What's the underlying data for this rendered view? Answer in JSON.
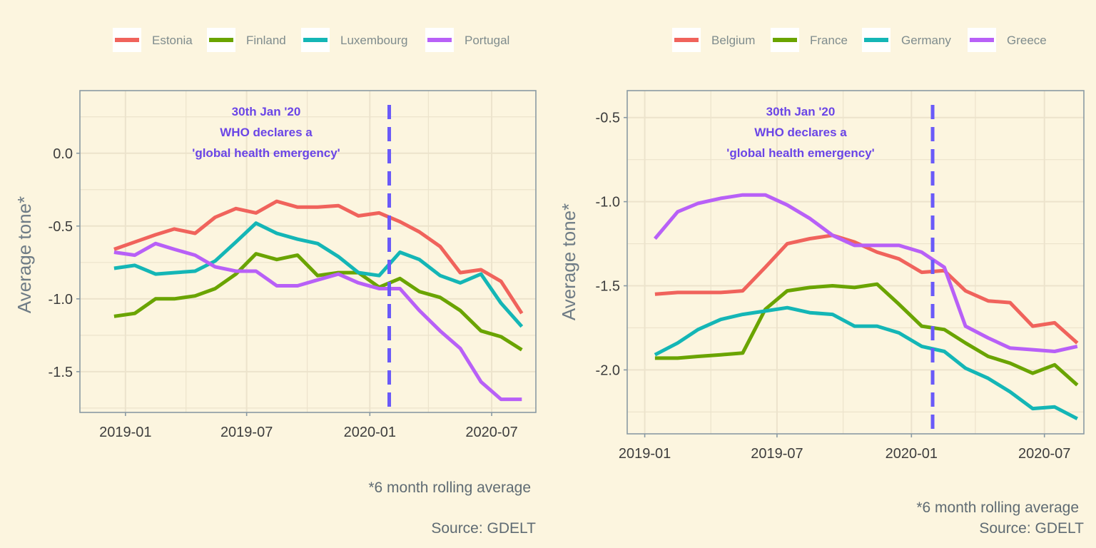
{
  "colors": {
    "background": "#fcf5df",
    "gridline": "#ece3cc",
    "panel_border": "#8a9aa3",
    "event_line": "#6a5af9",
    "annotation_text": "#6a45e6",
    "axis_text": "#3d3d3d",
    "axis_title": "#6e7b85"
  },
  "chart_data": [
    {
      "type": "line",
      "legend_position": "top",
      "grid": true,
      "ylabel": "Average tone*",
      "xlabel": "",
      "x_ticks": [
        "2019-01",
        "2019-07",
        "2020-01",
        "2020-07"
      ],
      "y_ticks": [
        "0.0",
        "-0.5",
        "-1.0",
        "-1.5"
      ],
      "y_tick_values": [
        0.0,
        -0.5,
        -1.0,
        -1.5
      ],
      "ylim": [
        -1.78,
        0.43
      ],
      "xlim": [
        "2018-10-25",
        "2020-09-05"
      ],
      "x": [
        "2018-12",
        "2019-01",
        "2019-02",
        "2019-03",
        "2019-04",
        "2019-05",
        "2019-06",
        "2019-07",
        "2019-08",
        "2019-09",
        "2019-10",
        "2019-11",
        "2019-12",
        "2020-01",
        "2020-02",
        "2020-03",
        "2020-04",
        "2020-05",
        "2020-06",
        "2020-07",
        "2020-08"
      ],
      "series": [
        {
          "name": "Estonia",
          "color": "#f0635c",
          "values": [
            -0.66,
            -0.61,
            -0.56,
            -0.52,
            -0.55,
            -0.44,
            -0.38,
            -0.41,
            -0.33,
            -0.37,
            -0.37,
            -0.36,
            -0.43,
            -0.41,
            -0.47,
            -0.54,
            -0.64,
            -0.82,
            -0.8,
            -0.88,
            -1.1
          ]
        },
        {
          "name": "Finland",
          "color": "#6aa400",
          "values": [
            -1.12,
            -1.1,
            -1.0,
            -1.0,
            -0.98,
            -0.93,
            -0.83,
            -0.69,
            -0.73,
            -0.7,
            -0.84,
            -0.82,
            -0.82,
            -0.92,
            -0.86,
            -0.95,
            -0.99,
            -1.08,
            -1.22,
            -1.26,
            -1.35
          ]
        },
        {
          "name": "Luxembourg",
          "color": "#14b6b6",
          "values": [
            -0.79,
            -0.77,
            -0.83,
            -0.82,
            -0.81,
            -0.74,
            -0.61,
            -0.48,
            -0.55,
            -0.59,
            -0.62,
            -0.71,
            -0.82,
            -0.84,
            -0.68,
            -0.73,
            -0.84,
            -0.89,
            -0.83,
            -1.03,
            -1.19
          ]
        },
        {
          "name": "Portugal",
          "color": "#b860f7",
          "values": [
            -0.68,
            -0.7,
            -0.62,
            -0.66,
            -0.7,
            -0.78,
            -0.81,
            -0.81,
            -0.91,
            -0.91,
            -0.87,
            -0.83,
            -0.89,
            -0.93,
            -0.93,
            -1.08,
            -1.22,
            -1.34,
            -1.57,
            -1.69,
            -1.69
          ]
        }
      ],
      "event_line": {
        "x": "2020-01-30"
      },
      "annotation": [
        "30th Jan '20",
        "WHO declares a",
        "'global health emergency'"
      ],
      "caption": "*6 month rolling average",
      "source": "Source: GDELT"
    },
    {
      "type": "line",
      "legend_position": "top",
      "grid": true,
      "ylabel": "Average tone*",
      "xlabel": "",
      "x_ticks": [
        "2019-01",
        "2019-07",
        "2020-01",
        "2020-07"
      ],
      "y_ticks": [
        "-0.5",
        "-1.0",
        "-1.5",
        "-2.0"
      ],
      "y_tick_values": [
        -0.5,
        -1.0,
        -1.5,
        -2.0
      ],
      "ylim": [
        -2.38,
        -0.34
      ],
      "xlim": [
        "2018-12-08",
        "2020-08-24"
      ],
      "x": [
        "2019-01",
        "2019-02",
        "2019-03",
        "2019-04",
        "2019-05",
        "2019-06",
        "2019-07",
        "2019-08",
        "2019-09",
        "2019-10",
        "2019-11",
        "2019-12",
        "2020-01",
        "2020-02",
        "2020-03",
        "2020-04",
        "2020-05",
        "2020-06",
        "2020-07",
        "2020-08"
      ],
      "series": [
        {
          "name": "Belgium",
          "color": "#f0635c",
          "values": [
            -1.55,
            -1.54,
            -1.54,
            -1.54,
            -1.53,
            -1.39,
            -1.25,
            -1.22,
            -1.2,
            -1.24,
            -1.3,
            -1.34,
            -1.42,
            -1.41,
            -1.53,
            -1.59,
            -1.6,
            -1.74,
            -1.72,
            -1.84
          ]
        },
        {
          "name": "France",
          "color": "#6aa400",
          "values": [
            -1.93,
            -1.93,
            -1.92,
            -1.91,
            -1.9,
            -1.64,
            -1.53,
            -1.51,
            -1.5,
            -1.51,
            -1.49,
            -1.61,
            -1.74,
            -1.76,
            -1.84,
            -1.92,
            -1.96,
            -2.02,
            -1.97,
            -2.09
          ]
        },
        {
          "name": "Germany",
          "color": "#14b6b6",
          "values": [
            -1.91,
            -1.84,
            -1.76,
            -1.7,
            -1.67,
            -1.65,
            -1.63,
            -1.66,
            -1.67,
            -1.74,
            -1.74,
            -1.78,
            -1.86,
            -1.89,
            -1.99,
            -2.05,
            -2.13,
            -2.23,
            -2.22,
            -2.29
          ]
        },
        {
          "name": "Greece",
          "color": "#b860f7",
          "values": [
            -1.22,
            -1.06,
            -1.01,
            -0.98,
            -0.96,
            -0.96,
            -1.02,
            -1.1,
            -1.2,
            -1.26,
            -1.26,
            -1.26,
            -1.3,
            -1.39,
            -1.74,
            -1.81,
            -1.87,
            -1.88,
            -1.89,
            -1.86
          ]
        }
      ],
      "event_line": {
        "x": "2020-01-30"
      },
      "annotation": [
        "30th Jan '20",
        "WHO declares a",
        "'global health emergency'"
      ],
      "caption": "*6 month rolling average",
      "source": "Source: GDELT"
    }
  ]
}
